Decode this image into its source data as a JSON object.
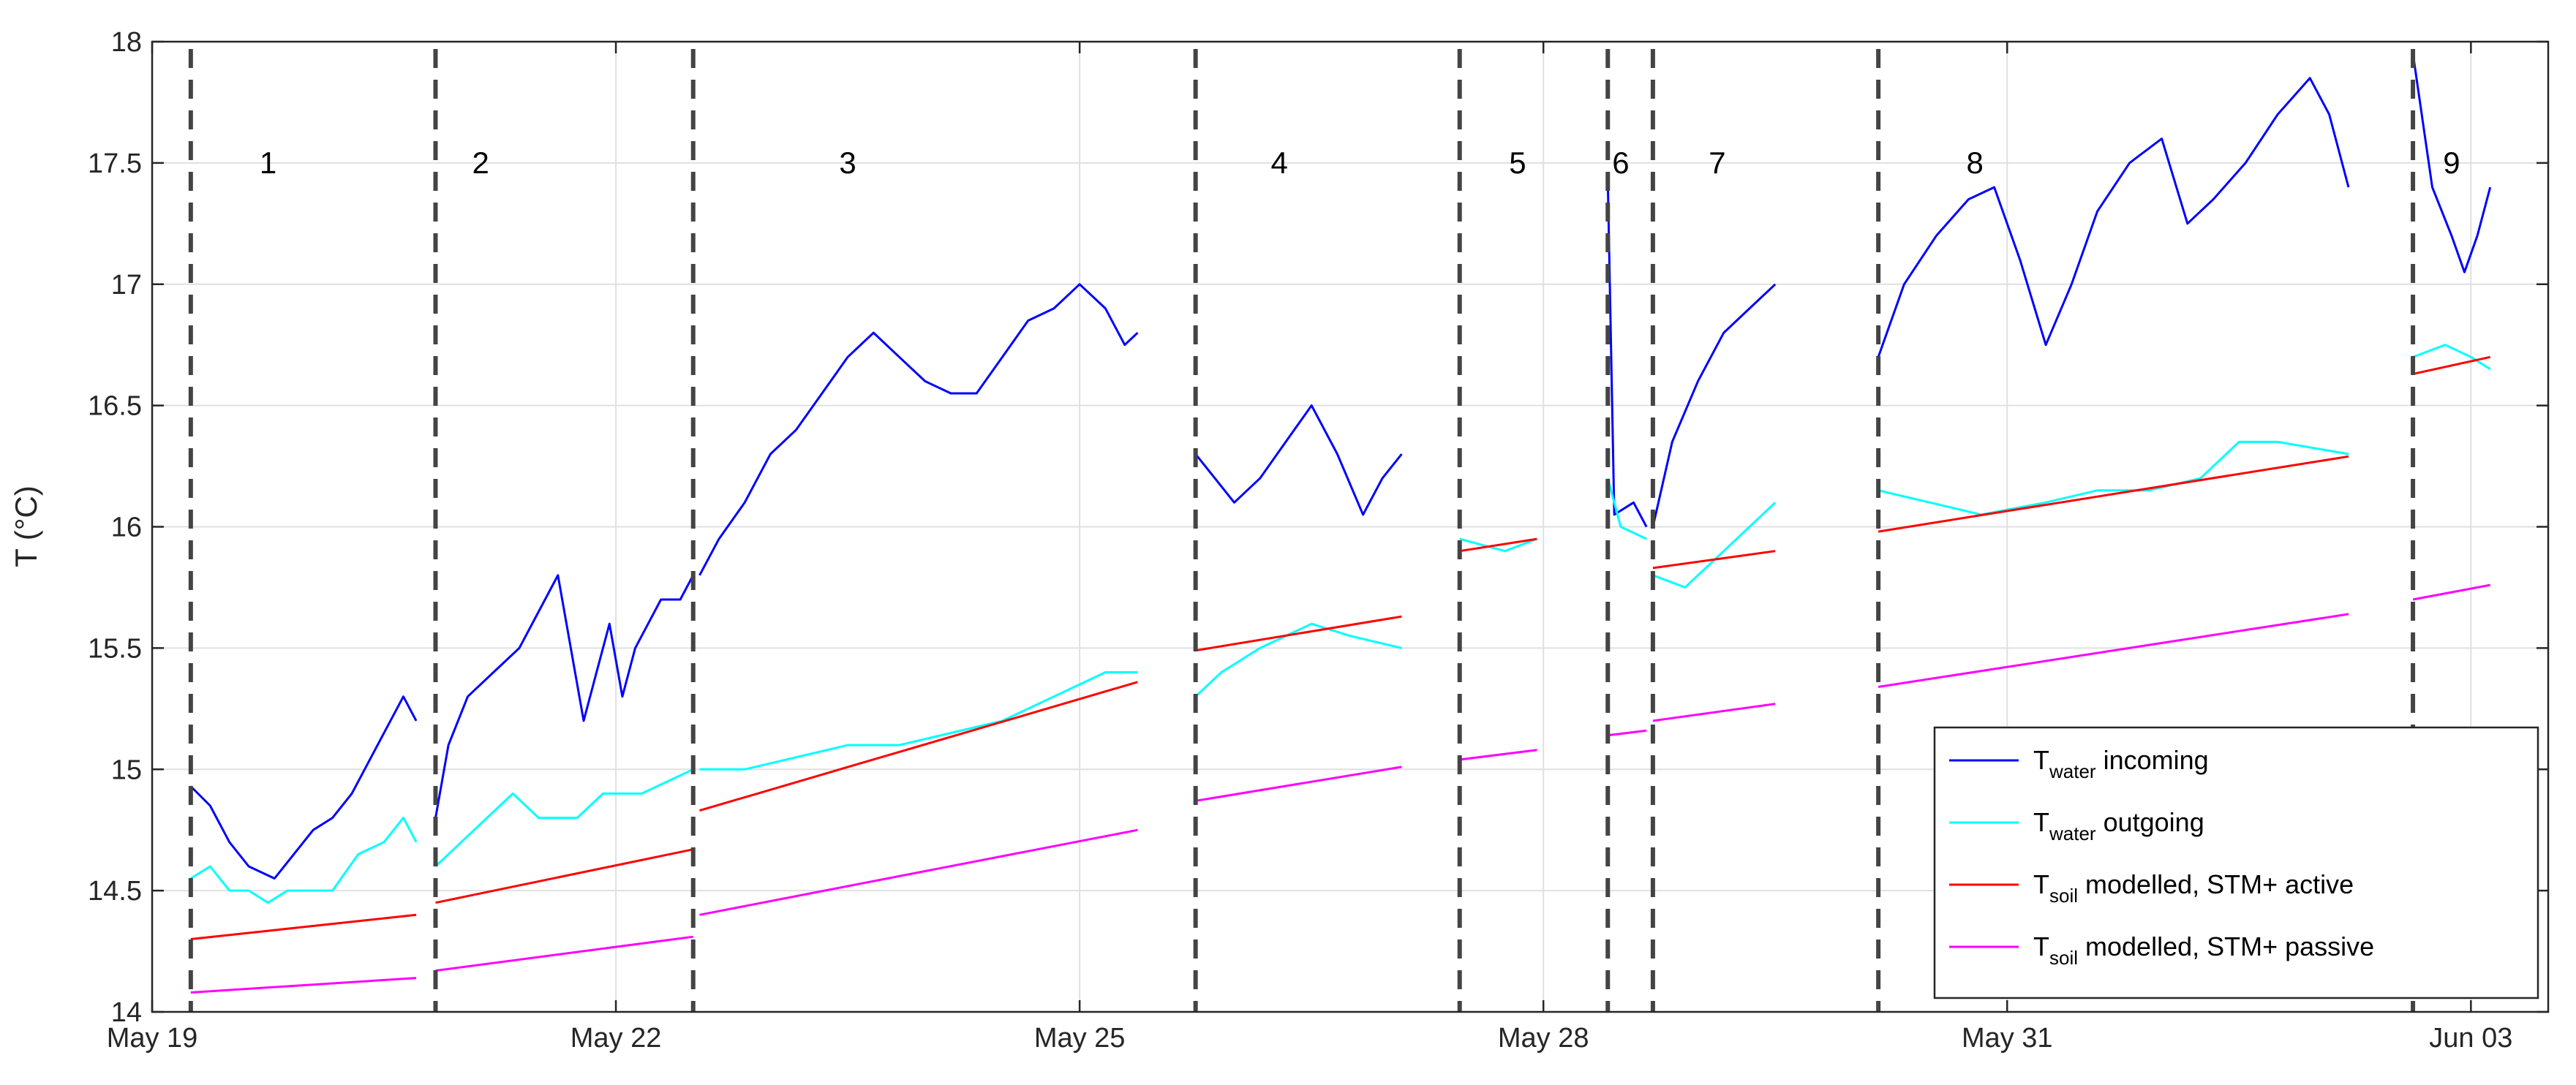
{
  "chart_data": {
    "type": "line",
    "ylabel": "T (°C)",
    "ylim": [
      14,
      18
    ],
    "yticks": [
      14,
      14.5,
      15,
      15.5,
      16,
      16.5,
      17,
      17.5,
      18
    ],
    "ytick_labels": [
      "14",
      "14.5",
      "15",
      "15.5",
      "16",
      "16.5",
      "17",
      "17.5",
      "18"
    ],
    "xlim": [
      "2024-05-19T00:00",
      "2024-06-03T12:00"
    ],
    "xticks": [
      "2024-05-19",
      "2024-05-22",
      "2024-05-25",
      "2024-05-28",
      "2024-05-31",
      "2024-06-03"
    ],
    "xtick_labels": [
      "May 19",
      "May 22",
      "May 25",
      "May 28",
      "May 31",
      "Jun 03"
    ],
    "grid": true,
    "legend_position": "bottom-right",
    "period_boundaries": [
      "2024-05-19T06:00",
      "2024-05-20T20:00",
      "2024-05-22T12:00",
      "2024-05-25T18:00",
      "2024-05-27T11:00",
      "2024-05-28T10:00",
      "2024-05-28T17:00",
      "2024-05-30T04:00",
      "2024-06-02T15:00"
    ],
    "period_labels": [
      {
        "label": "1",
        "x": "2024-05-19T18:00"
      },
      {
        "label": "2",
        "x": "2024-05-21T03:00"
      },
      {
        "label": "3",
        "x": "2024-05-23T12:00"
      },
      {
        "label": "4",
        "x": "2024-05-26T07:00"
      },
      {
        "label": "5",
        "x": "2024-05-27T20:00"
      },
      {
        "label": "6",
        "x": "2024-05-28T12:00"
      },
      {
        "label": "7",
        "x": "2024-05-29T03:00"
      },
      {
        "label": "8",
        "x": "2024-05-30T19:00"
      },
      {
        "label": "9",
        "x": "2024-06-02T21:00"
      }
    ],
    "legend": [
      {
        "base": "T",
        "sub": "water",
        "rest": " incoming",
        "color": "#0000ff"
      },
      {
        "base": "T",
        "sub": "water",
        "rest": " outgoing",
        "color": "#00ffff"
      },
      {
        "base": "T",
        "sub": "soil",
        "rest": " modelled, STM+ active",
        "color": "#ff0000"
      },
      {
        "base": "T",
        "sub": "soil",
        "rest": " modelled, STM+ passive",
        "color": "#ff00ff"
      }
    ],
    "series": [
      {
        "name": "T water incoming",
        "color": "#0000ff",
        "segments": [
          [
            [
              "2024-05-19T06:00",
              14.93
            ],
            [
              "2024-05-19T09:00",
              14.85
            ],
            [
              "2024-05-19T12:00",
              14.7
            ],
            [
              "2024-05-19T15:00",
              14.6
            ],
            [
              "2024-05-19T19:00",
              14.55
            ],
            [
              "2024-05-19T22:00",
              14.65
            ],
            [
              "2024-05-20T01:00",
              14.75
            ],
            [
              "2024-05-20T04:00",
              14.8
            ],
            [
              "2024-05-20T07:00",
              14.9
            ],
            [
              "2024-05-20T10:00",
              15.05
            ],
            [
              "2024-05-20T13:00",
              15.2
            ],
            [
              "2024-05-20T15:00",
              15.3
            ],
            [
              "2024-05-20T17:00",
              15.2
            ]
          ],
          [
            [
              "2024-05-20T20:00",
              14.8
            ],
            [
              "2024-05-20T22:00",
              15.1
            ],
            [
              "2024-05-21T01:00",
              15.3
            ],
            [
              "2024-05-21T05:00",
              15.4
            ],
            [
              "2024-05-21T09:00",
              15.5
            ],
            [
              "2024-05-21T13:00",
              15.7
            ],
            [
              "2024-05-21T15:00",
              15.8
            ],
            [
              "2024-05-21T17:00",
              15.5
            ],
            [
              "2024-05-21T19:00",
              15.2
            ],
            [
              "2024-05-21T21:00",
              15.4
            ],
            [
              "2024-05-21T23:00",
              15.6
            ],
            [
              "2024-05-22T01:00",
              15.3
            ],
            [
              "2024-05-22T03:00",
              15.5
            ],
            [
              "2024-05-22T05:00",
              15.6
            ],
            [
              "2024-05-22T07:00",
              15.7
            ],
            [
              "2024-05-22T10:00",
              15.7
            ],
            [
              "2024-05-22T12:00",
              15.8
            ]
          ],
          [
            [
              "2024-05-22T13:00",
              15.8
            ],
            [
              "2024-05-22T16:00",
              15.95
            ],
            [
              "2024-05-22T20:00",
              16.1
            ],
            [
              "2024-05-23T00:00",
              16.3
            ],
            [
              "2024-05-23T04:00",
              16.4
            ],
            [
              "2024-05-23T08:00",
              16.55
            ],
            [
              "2024-05-23T12:00",
              16.7
            ],
            [
              "2024-05-23T16:00",
              16.8
            ],
            [
              "2024-05-23T20:00",
              16.7
            ],
            [
              "2024-05-24T00:00",
              16.6
            ],
            [
              "2024-05-24T04:00",
              16.55
            ],
            [
              "2024-05-24T08:00",
              16.55
            ],
            [
              "2024-05-24T12:00",
              16.7
            ],
            [
              "2024-05-24T16:00",
              16.85
            ],
            [
              "2024-05-24T20:00",
              16.9
            ],
            [
              "2024-05-25T00:00",
              17.0
            ],
            [
              "2024-05-25T04:00",
              16.9
            ],
            [
              "2024-05-25T07:00",
              16.75
            ],
            [
              "2024-05-25T09:00",
              16.8
            ]
          ],
          [
            [
              "2024-05-25T18:00",
              16.3
            ],
            [
              "2024-05-25T21:00",
              16.2
            ],
            [
              "2024-05-26T00:00",
              16.1
            ],
            [
              "2024-05-26T04:00",
              16.2
            ],
            [
              "2024-05-26T08:00",
              16.35
            ],
            [
              "2024-05-26T12:00",
              16.5
            ],
            [
              "2024-05-26T16:00",
              16.3
            ],
            [
              "2024-05-26T20:00",
              16.05
            ],
            [
              "2024-05-26T23:00",
              16.2
            ],
            [
              "2024-05-27T02:00",
              16.3
            ]
          ],
          [
            [
              "2024-05-28T10:00",
              17.42
            ],
            [
              "2024-05-28T11:00",
              16.05
            ],
            [
              "2024-05-28T14:00",
              16.1
            ],
            [
              "2024-05-28T16:00",
              16.0
            ]
          ],
          [
            [
              "2024-05-28T17:00",
              16.0
            ],
            [
              "2024-05-28T20:00",
              16.35
            ],
            [
              "2024-05-29T00:00",
              16.6
            ],
            [
              "2024-05-29T04:00",
              16.8
            ],
            [
              "2024-05-29T08:00",
              16.9
            ],
            [
              "2024-05-29T12:00",
              17.0
            ]
          ],
          [
            [
              "2024-05-30T04:00",
              16.7
            ],
            [
              "2024-05-30T08:00",
              17.0
            ],
            [
              "2024-05-30T13:00",
              17.2
            ],
            [
              "2024-05-30T18:00",
              17.35
            ],
            [
              "2024-05-30T22:00",
              17.4
            ],
            [
              "2024-05-31T02:00",
              17.1
            ],
            [
              "2024-05-31T06:00",
              16.75
            ],
            [
              "2024-05-31T10:00",
              17.0
            ],
            [
              "2024-05-31T14:00",
              17.3
            ],
            [
              "2024-05-31T19:00",
              17.5
            ],
            [
              "2024-06-01T00:00",
              17.6
            ],
            [
              "2024-06-01T04:00",
              17.25
            ],
            [
              "2024-06-01T08:00",
              17.35
            ],
            [
              "2024-06-01T13:00",
              17.5
            ],
            [
              "2024-06-01T18:00",
              17.7
            ],
            [
              "2024-06-01T23:00",
              17.85
            ],
            [
              "2024-06-02T02:00",
              17.7
            ],
            [
              "2024-06-02T05:00",
              17.4
            ]
          ],
          [
            [
              "2024-06-02T15:00",
              17.95
            ],
            [
              "2024-06-02T18:00",
              17.4
            ],
            [
              "2024-06-02T21:00",
              17.2
            ],
            [
              "2024-06-02T23:00",
              17.05
            ],
            [
              "2024-06-03T01:00",
              17.2
            ],
            [
              "2024-06-03T03:00",
              17.4
            ]
          ]
        ]
      },
      {
        "name": "T water outgoing",
        "color": "#00ffff",
        "segments": [
          [
            [
              "2024-05-19T06:00",
              14.55
            ],
            [
              "2024-05-19T09:00",
              14.6
            ],
            [
              "2024-05-19T12:00",
              14.5
            ],
            [
              "2024-05-19T15:00",
              14.5
            ],
            [
              "2024-05-19T18:00",
              14.45
            ],
            [
              "2024-05-19T21:00",
              14.5
            ],
            [
              "2024-05-20T00:00",
              14.5
            ],
            [
              "2024-05-20T04:00",
              14.5
            ],
            [
              "2024-05-20T08:00",
              14.65
            ],
            [
              "2024-05-20T12:00",
              14.7
            ],
            [
              "2024-05-20T15:00",
              14.8
            ],
            [
              "2024-05-20T17:00",
              14.7
            ]
          ],
          [
            [
              "2024-05-20T20:00",
              14.6
            ],
            [
              "2024-05-21T00:00",
              14.7
            ],
            [
              "2024-05-21T04:00",
              14.8
            ],
            [
              "2024-05-21T08:00",
              14.9
            ],
            [
              "2024-05-21T12:00",
              14.8
            ],
            [
              "2024-05-21T18:00",
              14.8
            ],
            [
              "2024-05-21T22:00",
              14.9
            ],
            [
              "2024-05-22T04:00",
              14.9
            ],
            [
              "2024-05-22T12:00",
              15.0
            ]
          ],
          [
            [
              "2024-05-22T13:00",
              15.0
            ],
            [
              "2024-05-22T20:00",
              15.0
            ],
            [
              "2024-05-23T04:00",
              15.05
            ],
            [
              "2024-05-23T12:00",
              15.1
            ],
            [
              "2024-05-23T20:00",
              15.1
            ],
            [
              "2024-05-24T04:00",
              15.15
            ],
            [
              "2024-05-24T12:00",
              15.2
            ],
            [
              "2024-05-24T20:00",
              15.3
            ],
            [
              "2024-05-25T04:00",
              15.4
            ],
            [
              "2024-05-25T09:00",
              15.4
            ]
          ],
          [
            [
              "2024-05-25T18:00",
              15.3
            ],
            [
              "2024-05-25T22:00",
              15.4
            ],
            [
              "2024-05-26T04:00",
              15.5
            ],
            [
              "2024-05-26T12:00",
              15.6
            ],
            [
              "2024-05-26T18:00",
              15.55
            ],
            [
              "2024-05-27T02:00",
              15.5
            ]
          ],
          [
            [
              "2024-05-27T11:00",
              15.95
            ],
            [
              "2024-05-27T18:00",
              15.9
            ],
            [
              "2024-05-27T23:00",
              15.95
            ]
          ],
          [
            [
              "2024-05-28T10:00",
              16.2
            ],
            [
              "2024-05-28T12:00",
              16.0
            ],
            [
              "2024-05-28T16:00",
              15.95
            ]
          ],
          [
            [
              "2024-05-28T17:00",
              15.8
            ],
            [
              "2024-05-28T22:00",
              15.75
            ],
            [
              "2024-05-29T04:00",
              15.9
            ],
            [
              "2024-05-29T08:00",
              16.0
            ],
            [
              "2024-05-29T12:00",
              16.1
            ]
          ],
          [
            [
              "2024-05-30T04:00",
              16.15
            ],
            [
              "2024-05-30T12:00",
              16.1
            ],
            [
              "2024-05-30T20:00",
              16.05
            ],
            [
              "2024-05-31T06:00",
              16.1
            ],
            [
              "2024-05-31T14:00",
              16.15
            ],
            [
              "2024-05-31T22:00",
              16.15
            ],
            [
              "2024-06-01T06:00",
              16.2
            ],
            [
              "2024-06-01T12:00",
              16.35
            ],
            [
              "2024-06-01T18:00",
              16.35
            ],
            [
              "2024-06-02T05:00",
              16.3
            ]
          ],
          [
            [
              "2024-06-02T15:00",
              16.7
            ],
            [
              "2024-06-02T20:00",
              16.75
            ],
            [
              "2024-06-03T00:00",
              16.7
            ],
            [
              "2024-06-03T03:00",
              16.65
            ]
          ]
        ]
      },
      {
        "name": "T soil modelled, STM+ active",
        "color": "#ff0000",
        "segments": [
          [
            [
              "2024-05-19T06:00",
              14.3
            ],
            [
              "2024-05-20T17:00",
              14.4
            ]
          ],
          [
            [
              "2024-05-20T20:00",
              14.45
            ],
            [
              "2024-05-22T12:00",
              14.67
            ]
          ],
          [
            [
              "2024-05-22T13:00",
              14.83
            ],
            [
              "2024-05-25T09:00",
              15.36
            ]
          ],
          [
            [
              "2024-05-25T18:00",
              15.49
            ],
            [
              "2024-05-27T02:00",
              15.63
            ]
          ],
          [
            [
              "2024-05-27T11:00",
              15.9
            ],
            [
              "2024-05-27T23:00",
              15.95
            ]
          ],
          [
            [
              "2024-05-28T17:00",
              15.83
            ],
            [
              "2024-05-29T12:00",
              15.9
            ]
          ],
          [
            [
              "2024-05-30T04:00",
              15.98
            ],
            [
              "2024-06-02T05:00",
              16.29
            ]
          ],
          [
            [
              "2024-06-02T15:00",
              16.63
            ],
            [
              "2024-06-03T03:00",
              16.7
            ]
          ]
        ]
      },
      {
        "name": "T soil modelled, STM+ passive",
        "color": "#ff00ff",
        "segments": [
          [
            [
              "2024-05-19T06:00",
              14.08
            ],
            [
              "2024-05-20T17:00",
              14.14
            ]
          ],
          [
            [
              "2024-05-20T20:00",
              14.17
            ],
            [
              "2024-05-22T12:00",
              14.31
            ]
          ],
          [
            [
              "2024-05-22T13:00",
              14.4
            ],
            [
              "2024-05-25T09:00",
              14.75
            ]
          ],
          [
            [
              "2024-05-25T18:00",
              14.87
            ],
            [
              "2024-05-27T02:00",
              15.01
            ]
          ],
          [
            [
              "2024-05-27T11:00",
              15.04
            ],
            [
              "2024-05-27T23:00",
              15.08
            ]
          ],
          [
            [
              "2024-05-28T10:00",
              15.14
            ],
            [
              "2024-05-28T16:00",
              15.16
            ]
          ],
          [
            [
              "2024-05-28T17:00",
              15.2
            ],
            [
              "2024-05-29T12:00",
              15.27
            ]
          ],
          [
            [
              "2024-05-30T04:00",
              15.34
            ],
            [
              "2024-06-02T05:00",
              15.64
            ]
          ],
          [
            [
              "2024-06-02T15:00",
              15.7
            ],
            [
              "2024-06-03T03:00",
              15.76
            ]
          ]
        ]
      }
    ]
  }
}
